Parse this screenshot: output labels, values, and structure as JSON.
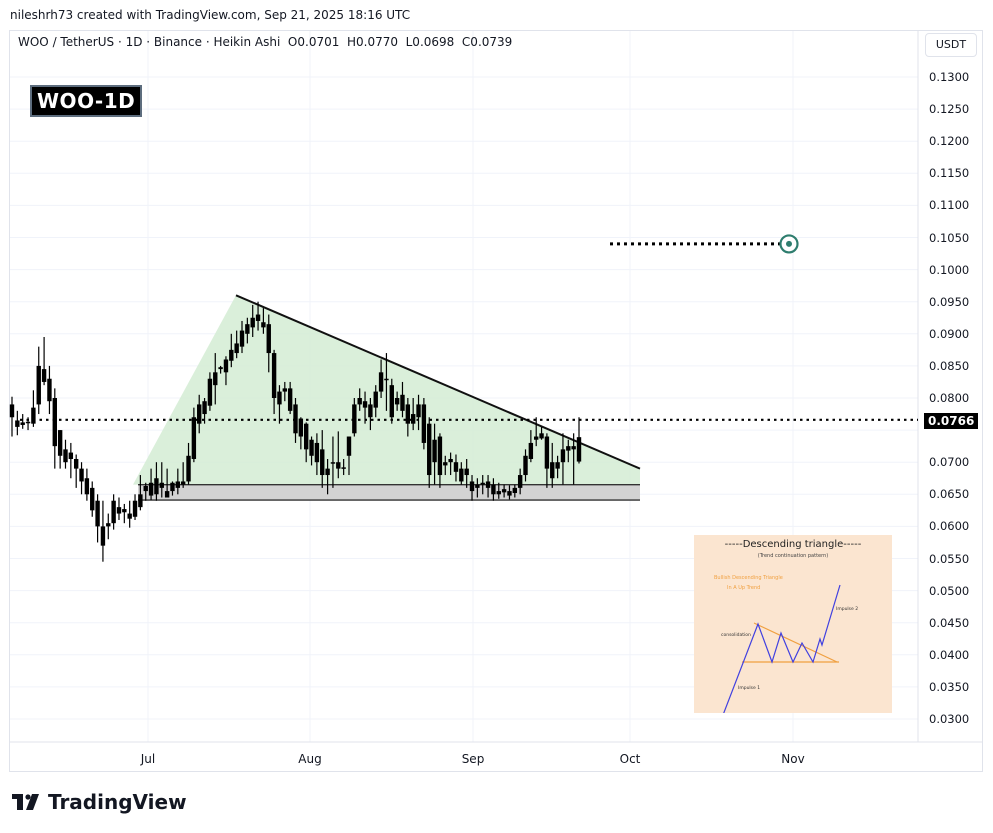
{
  "header": {
    "caption": "nileshrh73 created with TradingView.com, Sep 21, 2025 18:16 UTC",
    "legend": "WOO / TetherUS · 1D · Binance · Heikin Ashi  O0.0701  H0.0770  L0.0698  C0.0739",
    "symbol_badge": "WOO-1D",
    "currency": "USDT"
  },
  "footer": {
    "brand": "TradingView"
  },
  "colors": {
    "candle": "#000000",
    "triangle_fill": "#d4ecd4",
    "support_fill": "#d3d3d3",
    "target": "#2e7d6e",
    "grid": "#f0f3fa"
  },
  "chart_data": {
    "type": "candlestick",
    "title": "WOO / TetherUS · 1D · Binance · Heikin Ashi",
    "ohlc_latest": {
      "open": 0.0701,
      "high": 0.077,
      "low": 0.0698,
      "close": 0.0739
    },
    "last_price": "0.0766",
    "y_axis": {
      "ticks": [
        "0.1300",
        "0.1250",
        "0.1200",
        "0.1150",
        "0.1100",
        "0.1050",
        "0.1000",
        "0.0950",
        "0.0900",
        "0.0850",
        "0.0800",
        "0.0750",
        "0.0700",
        "0.0650",
        "0.0600",
        "0.0550",
        "0.0500",
        "0.0450",
        "0.0400",
        "0.0350",
        "0.0300"
      ],
      "range": [
        0.03,
        0.13
      ],
      "label": "USDT"
    },
    "x_axis": {
      "ticks": [
        "Jul",
        "Aug",
        "Sep",
        "Oct",
        "Nov"
      ]
    },
    "annotations": {
      "pattern": "Descending triangle",
      "triangle_top_start": 0.096,
      "triangle_trendline_end": 0.069,
      "support_zone": [
        0.0641,
        0.0665
      ],
      "target_price": 0.104,
      "current_price_line": 0.0766
    },
    "inset": {
      "title": "-----Descending triangle-----",
      "subtitle": "(Trend continuation pattern)",
      "orange_text_1": "Bullish Descending Triangle",
      "orange_text_2": "In A Up Trend",
      "label_consolidation": "consolidation",
      "label_impulse1": "Impulse 1",
      "label_impulse2": "Impulse 2"
    },
    "candles": [
      [
        0.079,
        0.0802,
        0.074,
        0.077
      ],
      [
        0.0765,
        0.078,
        0.0742,
        0.0755
      ],
      [
        0.0762,
        0.0775,
        0.0752,
        0.0758
      ],
      [
        0.0763,
        0.077,
        0.075,
        0.0762
      ],
      [
        0.076,
        0.0812,
        0.0755,
        0.0785
      ],
      [
        0.079,
        0.088,
        0.0775,
        0.085
      ],
      [
        0.0845,
        0.0895,
        0.082,
        0.0825
      ],
      [
        0.083,
        0.085,
        0.0775,
        0.0795
      ],
      [
        0.08,
        0.0815,
        0.069,
        0.0725
      ],
      [
        0.075,
        0.075,
        0.069,
        0.071
      ],
      [
        0.072,
        0.0735,
        0.069,
        0.07
      ],
      [
        0.0715,
        0.073,
        0.0675,
        0.0705
      ],
      [
        0.0705,
        0.0712,
        0.066,
        0.069
      ],
      [
        0.069,
        0.07,
        0.065,
        0.067
      ],
      [
        0.0675,
        0.069,
        0.064,
        0.065
      ],
      [
        0.066,
        0.067,
        0.0615,
        0.0625
      ],
      [
        0.064,
        0.065,
        0.0575,
        0.06
      ],
      [
        0.06,
        0.064,
        0.0545,
        0.057
      ],
      [
        0.06,
        0.062,
        0.058,
        0.0605
      ],
      [
        0.0605,
        0.065,
        0.0595,
        0.064
      ],
      [
        0.063,
        0.0645,
        0.061,
        0.062
      ],
      [
        0.0627,
        0.0635,
        0.0605,
        0.0622
      ],
      [
        0.0612,
        0.064,
        0.0598,
        0.062
      ],
      [
        0.0615,
        0.065,
        0.061,
        0.064
      ],
      [
        0.063,
        0.068,
        0.0625,
        0.065
      ],
      [
        0.0655,
        0.0668,
        0.064,
        0.0663
      ],
      [
        0.0648,
        0.069,
        0.0641,
        0.0668
      ],
      [
        0.065,
        0.07,
        0.064,
        0.0675
      ],
      [
        0.0668,
        0.07,
        0.0645,
        0.066
      ],
      [
        0.0655,
        0.069,
        0.0645,
        0.0645
      ],
      [
        0.0655,
        0.067,
        0.0648,
        0.0668
      ],
      [
        0.066,
        0.069,
        0.065,
        0.067
      ],
      [
        0.0665,
        0.07,
        0.066,
        0.067
      ],
      [
        0.067,
        0.073,
        0.0665,
        0.071
      ],
      [
        0.0705,
        0.0785,
        0.07,
        0.077
      ],
      [
        0.076,
        0.0805,
        0.0745,
        0.079
      ],
      [
        0.0775,
        0.08,
        0.076,
        0.0795
      ],
      [
        0.0788,
        0.084,
        0.078,
        0.083
      ],
      [
        0.082,
        0.087,
        0.079,
        0.084
      ],
      [
        0.0845,
        0.085,
        0.0838,
        0.0848
      ],
      [
        0.084,
        0.0865,
        0.082,
        0.086
      ],
      [
        0.0858,
        0.09,
        0.0848,
        0.0875
      ],
      [
        0.087,
        0.0905,
        0.0862,
        0.0885
      ],
      [
        0.088,
        0.092,
        0.087,
        0.0905
      ],
      [
        0.09,
        0.0925,
        0.0885,
        0.0915
      ],
      [
        0.091,
        0.0945,
        0.0895,
        0.0925
      ],
      [
        0.092,
        0.095,
        0.0905,
        0.093
      ],
      [
        0.0918,
        0.094,
        0.09,
        0.091
      ],
      [
        0.0915,
        0.093,
        0.084,
        0.087
      ],
      [
        0.087,
        0.0875,
        0.0775,
        0.08
      ],
      [
        0.081,
        0.082,
        0.076,
        0.079
      ],
      [
        0.0815,
        0.0825,
        0.0795,
        0.081
      ],
      [
        0.0815,
        0.0825,
        0.0775,
        0.078
      ],
      [
        0.079,
        0.08,
        0.073,
        0.0745
      ],
      [
        0.0768,
        0.077,
        0.072,
        0.074
      ],
      [
        0.076,
        0.0762,
        0.07,
        0.072
      ],
      [
        0.0735,
        0.074,
        0.0695,
        0.071
      ],
      [
        0.073,
        0.0745,
        0.068,
        0.07
      ],
      [
        0.072,
        0.075,
        0.066,
        0.068
      ],
      [
        0.069,
        0.0705,
        0.065,
        0.068
      ],
      [
        0.07,
        0.074,
        0.066,
        0.07
      ],
      [
        0.07,
        0.0748,
        0.0675,
        0.069
      ],
      [
        0.0692,
        0.0705,
        0.068,
        0.0692
      ],
      [
        0.071,
        0.074,
        0.068,
        0.074
      ],
      [
        0.0745,
        0.08,
        0.074,
        0.079
      ],
      [
        0.079,
        0.0815,
        0.078,
        0.08
      ],
      [
        0.0795,
        0.081,
        0.076,
        0.0785
      ],
      [
        0.079,
        0.08,
        0.075,
        0.077
      ],
      [
        0.0785,
        0.082,
        0.077,
        0.081
      ],
      [
        0.081,
        0.086,
        0.08,
        0.084
      ],
      [
        0.083,
        0.087,
        0.078,
        0.083
      ],
      [
        0.082,
        0.083,
        0.076,
        0.077
      ],
      [
        0.08,
        0.081,
        0.078,
        0.079
      ],
      [
        0.0805,
        0.0825,
        0.077,
        0.078
      ],
      [
        0.079,
        0.08,
        0.074,
        0.076
      ],
      [
        0.0775,
        0.08,
        0.075,
        0.076
      ],
      [
        0.077,
        0.0805,
        0.075,
        0.079
      ],
      [
        0.079,
        0.08,
        0.072,
        0.073
      ],
      [
        0.076,
        0.077,
        0.066,
        0.068
      ],
      [
        0.0735,
        0.076,
        0.0665,
        0.07
      ],
      [
        0.074,
        0.0745,
        0.066,
        0.068
      ],
      [
        0.07,
        0.071,
        0.068,
        0.0695
      ],
      [
        0.0705,
        0.0715,
        0.068,
        0.07
      ],
      [
        0.07,
        0.0712,
        0.067,
        0.0685
      ],
      [
        0.069,
        0.07,
        0.0665,
        0.067
      ],
      [
        0.069,
        0.0705,
        0.066,
        0.068
      ],
      [
        0.067,
        0.068,
        0.064,
        0.0655
      ],
      [
        0.0665,
        0.0675,
        0.0645,
        0.066
      ],
      [
        0.0665,
        0.068,
        0.065,
        0.0668
      ],
      [
        0.067,
        0.068,
        0.0645,
        0.066
      ],
      [
        0.0665,
        0.0675,
        0.064,
        0.065
      ],
      [
        0.065,
        0.0668,
        0.0643,
        0.0655
      ],
      [
        0.0658,
        0.0665,
        0.0645,
        0.0653
      ],
      [
        0.0655,
        0.0664,
        0.0642,
        0.0648
      ],
      [
        0.0652,
        0.0665,
        0.0645,
        0.066
      ],
      [
        0.066,
        0.069,
        0.065,
        0.068
      ],
      [
        0.068,
        0.072,
        0.067,
        0.071
      ],
      [
        0.0705,
        0.075,
        0.07,
        0.073
      ],
      [
        0.0735,
        0.077,
        0.0725,
        0.074
      ],
      [
        0.0745,
        0.0755,
        0.0735,
        0.0737
      ],
      [
        0.074,
        0.0745,
        0.066,
        0.069
      ],
      [
        0.07,
        0.073,
        0.066,
        0.0675
      ],
      [
        0.069,
        0.071,
        0.0675,
        0.07
      ],
      [
        0.07,
        0.0745,
        0.0665,
        0.072
      ],
      [
        0.0725,
        0.0735,
        0.07,
        0.0718
      ],
      [
        0.072,
        0.0745,
        0.0665,
        0.0725
      ],
      [
        0.0701,
        0.077,
        0.0698,
        0.0739
      ]
    ]
  }
}
